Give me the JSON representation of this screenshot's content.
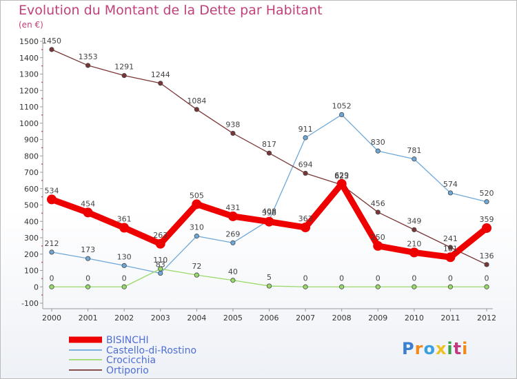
{
  "title": "Evolution du Montant de la Dette par Habitant",
  "subtitle": "(en €)",
  "logo": {
    "text": "Proxiti",
    "letters": [
      "P",
      "r",
      "o",
      "x",
      "i",
      "t",
      "i"
    ],
    "colors": [
      "#3a7fd0",
      "#f08a1a",
      "#3aa0e0",
      "#f0c020",
      "#3aa04a",
      "#c03a80",
      "#f08a1a"
    ]
  },
  "chart_data": {
    "type": "line",
    "title": "Evolution du Montant de la Dette par Habitant",
    "subtitle": "(en €)",
    "x": [
      "2000",
      "2001",
      "2002",
      "2003",
      "2004",
      "2005",
      "2006",
      "2007",
      "2008",
      "2009",
      "2010",
      "2011",
      "2012"
    ],
    "ylim": [
      -100,
      1500
    ],
    "yticks": [
      -100,
      0,
      100,
      200,
      300,
      400,
      500,
      600,
      700,
      800,
      900,
      1000,
      1100,
      1200,
      1300,
      1400,
      1500
    ],
    "grid": false,
    "legend_position": "bottom-left",
    "series": [
      {
        "name": "BISINCHI",
        "color": "#ee0000",
        "highlight": true,
        "values": [
          534,
          454,
          361,
          263,
          505,
          431,
          398,
          363,
          629,
          250,
          210,
          181,
          359
        ],
        "labels": [
          "534",
          "454",
          "361",
          "263",
          "505",
          "431",
          "398",
          "363",
          "629",
          "250",
          "210",
          "181",
          "359"
        ]
      },
      {
        "name": "Castello-di-Rostino",
        "color": "#6ea8d8",
        "values": [
          212,
          173,
          130,
          83,
          310,
          269,
          408,
          911,
          1052,
          830,
          781,
          574,
          520
        ],
        "labels": [
          "212",
          "173",
          "130",
          "83",
          "310",
          "269",
          "408",
          "911",
          "1052",
          "830",
          "781",
          "574",
          "520"
        ]
      },
      {
        "name": "Crocicchia",
        "color": "#99d96a",
        "values": [
          0,
          0,
          0,
          110,
          72,
          40,
          5,
          0,
          0,
          0,
          0,
          0,
          0
        ],
        "labels": [
          "0",
          "0",
          "0",
          "110",
          "72",
          "40",
          "5",
          "0",
          "0",
          "0",
          "0",
          "0",
          "0"
        ]
      },
      {
        "name": "Ortiporio",
        "color": "#7a3636",
        "values": [
          1450,
          1353,
          1291,
          1244,
          1084,
          938,
          817,
          694,
          623,
          456,
          349,
          241,
          136
        ],
        "labels": [
          "1450",
          "1353",
          "1291",
          "1244",
          "1084",
          "938",
          "817",
          "694",
          "623",
          "456",
          "349",
          "241",
          "136"
        ]
      }
    ]
  }
}
